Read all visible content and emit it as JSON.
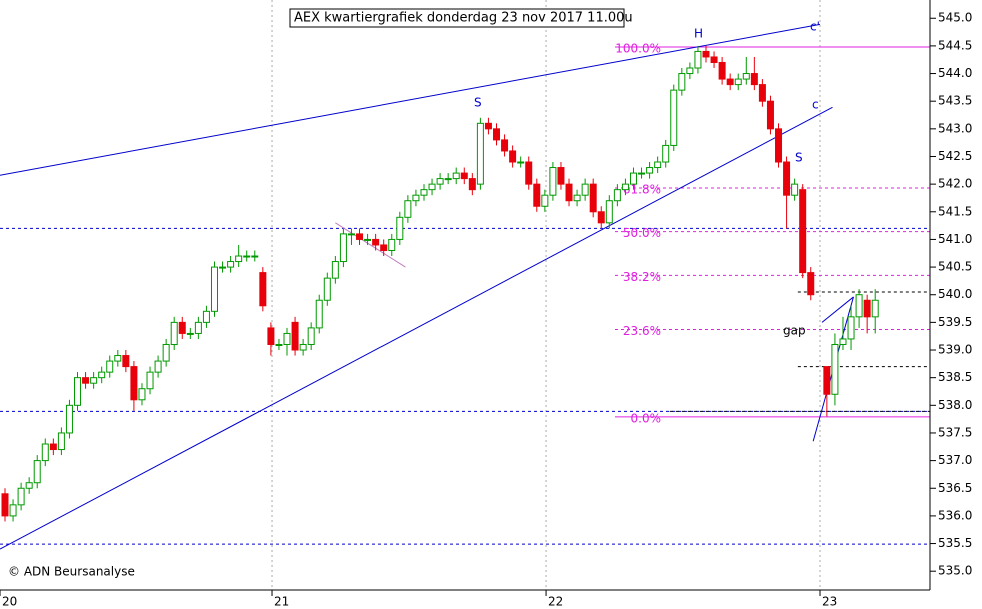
{
  "chart_data": {
    "type": "candlestick",
    "title": "AEX kwartiergrafiek donderdag 23 nov 2017 11.00u",
    "source": "© ADN Beursanalyse",
    "up_color": "#009900",
    "down_color": "#e8000b",
    "xlim": [
      -0.62,
      114.8
    ],
    "xticks": [
      {
        "value": -0.62,
        "label": "20"
      },
      {
        "value": 33.14,
        "label": "21"
      },
      {
        "value": 67.15,
        "label": "22"
      },
      {
        "value": 101.15,
        "label": "23"
      }
    ],
    "ylim": [
      534.66,
      545.33
    ],
    "yticks": [
      {
        "value": 535,
        "label": "535.0"
      },
      {
        "value": 535.5,
        "label": "535.5"
      },
      {
        "value": 536,
        "label": "536.0"
      },
      {
        "value": 536.5,
        "label": "536.5"
      },
      {
        "value": 537,
        "label": "537.0"
      },
      {
        "value": 537.5,
        "label": "537.5"
      },
      {
        "value": 538,
        "label": "538.0"
      },
      {
        "value": 538.5,
        "label": "538.5"
      },
      {
        "value": 539,
        "label": "539.0"
      },
      {
        "value": 539.5,
        "label": "539.5"
      },
      {
        "value": 540,
        "label": "540.0"
      },
      {
        "value": 540.5,
        "label": "540.5"
      },
      {
        "value": 541,
        "label": "541.0"
      },
      {
        "value": 541.5,
        "label": "541.5"
      },
      {
        "value": 542,
        "label": "542.0"
      },
      {
        "value": 542.5,
        "label": "542.5"
      },
      {
        "value": 543,
        "label": "543.0"
      },
      {
        "value": 543.5,
        "label": "543.5"
      },
      {
        "value": 544,
        "label": "544.0"
      },
      {
        "value": 544.5,
        "label": "544.5"
      },
      {
        "value": 545,
        "label": "545.0"
      }
    ],
    "x": [
      0,
      1,
      2,
      3,
      4,
      5,
      6,
      7,
      8,
      9,
      10,
      11,
      12,
      13,
      14,
      15,
      16,
      17,
      18,
      19,
      20,
      21,
      22,
      23,
      24,
      25,
      26,
      27,
      28,
      29,
      30,
      31,
      32,
      33,
      34,
      35,
      36,
      37,
      38,
      39,
      40,
      41,
      42,
      43,
      44,
      45,
      46,
      47,
      48,
      49,
      50,
      51,
      52,
      53,
      54,
      55,
      56,
      57,
      58,
      59,
      60,
      61,
      62,
      63,
      64,
      65,
      66,
      67,
      68,
      69,
      70,
      71,
      72,
      73,
      74,
      75,
      76,
      77,
      78,
      79,
      80,
      81,
      82,
      83,
      84,
      85,
      86,
      87,
      88,
      89,
      90,
      91,
      92,
      93,
      94,
      95,
      96,
      97,
      98,
      99,
      100,
      102,
      103,
      104,
      105,
      106,
      107,
      108
    ],
    "open": [
      536.4,
      536.0,
      536.2,
      536.5,
      536.6,
      537.0,
      537.3,
      537.2,
      537.5,
      538.0,
      538.5,
      538.4,
      538.5,
      538.6,
      538.8,
      538.9,
      538.7,
      538.1,
      538.3,
      538.6,
      538.8,
      539.1,
      539.5,
      539.3,
      539.3,
      539.5,
      539.7,
      540.5,
      540.5,
      540.6,
      540.7,
      540.7,
      540.4,
      539.4,
      539.1,
      539.1,
      539.5,
      539.0,
      539.1,
      539.4,
      539.9,
      540.3,
      540.6,
      541.1,
      541.1,
      541.0,
      541.0,
      540.9,
      540.8,
      541.0,
      541.4,
      541.7,
      541.8,
      541.9,
      542.0,
      542.1,
      542.1,
      542.2,
      542.1,
      542.0,
      543.1,
      543.0,
      542.8,
      542.6,
      542.4,
      542.4,
      542.0,
      541.6,
      541.8,
      542.3,
      542.0,
      541.7,
      541.8,
      542.0,
      541.5,
      541.3,
      541.7,
      541.9,
      542.0,
      542.2,
      542.2,
      542.3,
      542.4,
      542.7,
      543.7,
      544.0,
      544.1,
      544.4,
      544.3,
      544.2,
      543.9,
      543.8,
      543.9,
      544.0,
      543.8,
      543.5,
      543.0,
      542.4,
      541.8,
      541.9,
      540.4,
      538.7,
      538.2,
      539.1,
      539.2,
      539.6,
      539.9,
      539.6
    ],
    "high": [
      536.5,
      536.3,
      536.6,
      536.7,
      537.1,
      537.4,
      537.4,
      537.6,
      538.1,
      538.6,
      538.6,
      538.6,
      538.7,
      538.9,
      539.0,
      539.0,
      538.8,
      538.4,
      538.7,
      538.9,
      539.2,
      539.6,
      539.6,
      539.4,
      539.6,
      539.8,
      540.6,
      540.6,
      540.7,
      540.9,
      540.8,
      540.8,
      540.5,
      539.5,
      539.2,
      539.4,
      539.6,
      539.2,
      539.5,
      540.0,
      540.4,
      540.7,
      541.2,
      541.2,
      541.2,
      541.1,
      541.1,
      541.0,
      541.1,
      541.5,
      541.8,
      541.9,
      542.0,
      542.1,
      542.2,
      542.2,
      542.3,
      542.3,
      542.2,
      543.2,
      543.2,
      543.1,
      542.9,
      542.7,
      542.5,
      542.5,
      542.1,
      541.9,
      542.4,
      542.4,
      542.1,
      541.9,
      542.1,
      542.1,
      541.6,
      541.8,
      542.0,
      542.1,
      542.3,
      542.3,
      542.4,
      542.5,
      542.8,
      543.8,
      544.1,
      544.2,
      544.5,
      544.5,
      544.4,
      544.3,
      544.0,
      544.0,
      544.3,
      544.3,
      543.9,
      543.6,
      543.1,
      542.5,
      542.1,
      542.0,
      540.5,
      538.7,
      539.3,
      539.6,
      539.8,
      540.1,
      540.0,
      540.1
    ],
    "low": [
      535.9,
      535.9,
      536.1,
      536.4,
      536.5,
      536.9,
      537.1,
      537.1,
      537.4,
      537.9,
      538.3,
      538.3,
      538.4,
      538.5,
      538.7,
      538.6,
      537.9,
      538.0,
      538.2,
      538.5,
      538.7,
      539.0,
      539.2,
      539.2,
      539.2,
      539.4,
      539.6,
      540.4,
      540.4,
      540.5,
      540.6,
      540.6,
      539.7,
      538.9,
      539.0,
      538.9,
      538.9,
      538.9,
      539.0,
      539.3,
      539.8,
      540.2,
      540.5,
      540.9,
      540.9,
      540.9,
      540.8,
      540.7,
      540.7,
      540.9,
      541.3,
      541.6,
      541.7,
      541.8,
      541.9,
      542.0,
      542.0,
      542.0,
      541.8,
      541.9,
      542.9,
      542.7,
      542.5,
      542.3,
      542.3,
      541.9,
      541.5,
      541.5,
      541.7,
      541.9,
      541.6,
      541.6,
      541.7,
      541.4,
      541.2,
      541.2,
      541.6,
      541.8,
      541.9,
      542.1,
      542.1,
      542.2,
      542.3,
      542.6,
      543.6,
      543.9,
      544.0,
      544.2,
      544.1,
      543.8,
      543.7,
      543.7,
      543.8,
      543.7,
      543.4,
      542.9,
      542.3,
      541.2,
      541.7,
      540.3,
      539.9,
      537.8,
      538.0,
      539.0,
      539.0,
      539.4,
      539.3,
      539.3
    ],
    "close": [
      536.0,
      536.2,
      536.5,
      536.6,
      537.0,
      537.3,
      537.2,
      537.5,
      538.0,
      538.5,
      538.4,
      538.5,
      538.6,
      538.8,
      538.9,
      538.7,
      538.1,
      538.3,
      538.6,
      538.8,
      539.1,
      539.5,
      539.3,
      539.3,
      539.5,
      539.7,
      540.5,
      540.5,
      540.6,
      540.7,
      540.7,
      540.7,
      539.8,
      539.1,
      539.1,
      539.3,
      539.0,
      539.1,
      539.4,
      539.9,
      540.3,
      540.6,
      541.1,
      541.1,
      541.0,
      541.0,
      540.9,
      540.8,
      541.0,
      541.4,
      541.7,
      541.8,
      541.9,
      542.0,
      542.1,
      542.1,
      542.2,
      542.1,
      541.9,
      543.1,
      543.0,
      542.8,
      542.6,
      542.4,
      542.4,
      542.0,
      541.6,
      541.8,
      542.3,
      542.0,
      541.7,
      541.8,
      542.0,
      541.5,
      541.3,
      541.7,
      541.9,
      542.0,
      542.2,
      542.2,
      542.3,
      542.4,
      542.7,
      543.7,
      544.0,
      544.1,
      544.4,
      544.3,
      544.2,
      543.9,
      543.8,
      543.9,
      544.0,
      543.8,
      543.5,
      543.0,
      542.4,
      541.8,
      542.0,
      540.4,
      540.0,
      538.2,
      539.1,
      539.2,
      539.6,
      540.0,
      539.6,
      539.9
    ],
    "fib_levels": [
      {
        "value": 544.48,
        "label": "100.0%",
        "solid": true
      },
      {
        "value": 541.93,
        "label": "61.8%",
        "solid": false
      },
      {
        "value": 541.14,
        "label": "50.0%",
        "solid": false
      },
      {
        "value": 540.35,
        "label": "38.2%",
        "solid": false
      },
      {
        "value": 539.37,
        "label": "23.6%",
        "solid": false
      },
      {
        "value": 537.79,
        "label": "0.0%",
        "solid": true
      }
    ],
    "fib_color": "#e020e0",
    "levels": [
      {
        "value": 541.2,
        "color": "#0000cc"
      },
      {
        "value": 537.89,
        "color": "#0000cc"
      },
      {
        "value": 535.49,
        "color": "#0000cc"
      }
    ],
    "short_levels": [
      {
        "value": 540.05,
        "from": 98.4
      },
      {
        "value": 538.7,
        "from": 98.4
      },
      {
        "value": 537.89,
        "from": 82.5
      }
    ],
    "trendlines": [
      {
        "x": [
          -0.62,
          101.15
        ],
        "y": [
          542.16,
          544.89
        ]
      },
      {
        "x": [
          -0.62,
          102.7
        ],
        "y": [
          535.4,
          543.39
        ]
      },
      {
        "x": [
          100.3,
          105.3
        ],
        "y": [
          537.35,
          539.96
        ]
      },
      {
        "x": [
          101.4,
          105.3
        ],
        "y": [
          539.5,
          539.96
        ]
      }
    ],
    "channel": {
      "x": [
        41.0,
        49.7
      ],
      "y": [
        541.3,
        540.5
      ]
    },
    "annotations": [
      "S",
      "H",
      "S",
      "c'",
      "c",
      "gap"
    ]
  }
}
